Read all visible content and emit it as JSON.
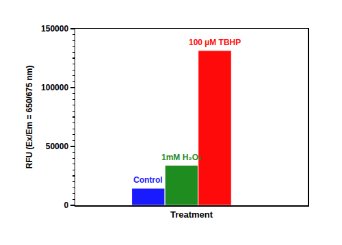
{
  "chart_data": {
    "type": "bar",
    "categories": [
      "Control",
      "1mM H₂O₂",
      "100 µM TBHP"
    ],
    "values": [
      14500,
      34000,
      131500
    ],
    "colors": [
      "#1a1aff",
      "#1e8c1e",
      "#ff0a0a"
    ],
    "xlabel": "Treatment",
    "ylabel": "RFU (Ex/Em = 650/675 nm)",
    "ylim": [
      0,
      150000
    ],
    "yticks": [
      0,
      50000,
      100000,
      150000
    ],
    "tick_labels": "y",
    "grid": false
  }
}
